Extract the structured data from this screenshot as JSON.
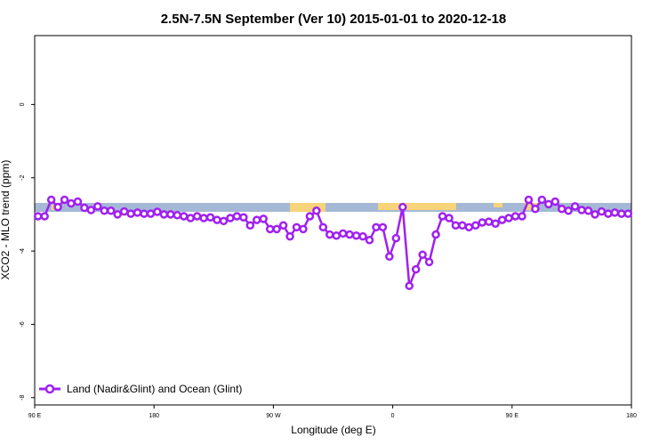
{
  "chart_data": {
    "type": "line",
    "title": "2.5N-7.5N September (Ver 10)   2015-01-01 to 2020-12-18",
    "x_label": "Longitude (deg E)",
    "y_label": "XCO2 - MLO trend (ppm)",
    "xlim": [
      90,
      540
    ],
    "ylim": [
      -8.2,
      1.88
    ],
    "xticks": [
      {
        "value": 90,
        "label": "90 E"
      },
      180,
      {
        "value": 270,
        "label": "90 W"
      },
      {
        "value": 360,
        "label": "0"
      },
      {
        "value": 450,
        "label": "90 E"
      },
      {
        "value": 540,
        "label": "180"
      }
    ],
    "yticks": [
      0,
      -2,
      -4,
      -6,
      -8
    ],
    "legend": "bottom-left",
    "x": [
      92.5,
      97.5,
      102.5,
      107.5,
      112.5,
      117.5,
      122.5,
      127.5,
      132.5,
      137.5,
      142.5,
      147.5,
      152.5,
      157.5,
      162.5,
      167.5,
      172.5,
      177.5,
      182.5,
      187.5,
      192.5,
      197.5,
      202.5,
      207.5,
      212.5,
      217.5,
      222.5,
      227.5,
      232.5,
      237.5,
      242.5,
      247.5,
      252.5,
      257.5,
      262.5,
      267.5,
      272.5,
      277.5,
      282.5,
      287.5,
      292.5,
      297.5,
      302.5,
      307.5,
      312.5,
      317.5,
      322.5,
      327.5,
      332.5,
      337.5,
      342.5,
      347.5,
      352.5,
      357.5,
      362.5,
      367.5,
      372.5,
      377.5,
      382.5,
      387.5,
      392.5,
      397.5,
      402.5,
      407.5,
      412.5,
      417.5,
      422.5,
      427.5,
      432.5,
      437.5,
      442.5,
      447.5,
      452.5,
      457.5,
      462.5,
      467.5,
      472.5,
      477.5,
      482.5,
      487.5,
      492.5,
      497.5,
      502.5,
      507.5,
      512.5,
      517.5,
      522.5,
      527.5,
      532.5,
      537.5
    ],
    "series": [
      {
        "name": "Land (Nadir&Glint) and Ocean (Glint)",
        "color": "#a020f0",
        "values": [
          -3.05,
          -3.05,
          -2.6,
          -2.8,
          -2.6,
          -2.7,
          -2.65,
          -2.82,
          -2.88,
          -2.78,
          -2.9,
          -2.9,
          -3.0,
          -2.92,
          -2.98,
          -2.95,
          -2.98,
          -2.98,
          -2.93,
          -3.0,
          -3.0,
          -3.02,
          -3.05,
          -3.1,
          -3.05,
          -3.1,
          -3.08,
          -3.15,
          -3.18,
          -3.1,
          -3.05,
          -3.08,
          -3.3,
          -3.15,
          -3.12,
          -3.4,
          -3.4,
          -3.3,
          -3.6,
          -3.35,
          -3.4,
          -3.05,
          -2.9,
          -3.35,
          -3.55,
          -3.58,
          -3.52,
          -3.55,
          -3.58,
          -3.6,
          -3.7,
          -3.35,
          -3.35,
          -4.15,
          -3.65,
          -2.8,
          -4.95,
          -4.5,
          -4.1,
          -4.3,
          -3.55,
          -3.05,
          -3.1,
          -3.3,
          -3.3,
          -3.35,
          -3.3,
          -3.22,
          -3.2,
          -3.25,
          -3.15,
          -3.1,
          -3.05,
          -3.05,
          -2.6,
          -2.85,
          -2.6,
          -2.72,
          -2.65,
          -2.85,
          -2.9,
          -2.78,
          -2.88,
          -2.9,
          -3.0,
          -2.92,
          -2.98,
          -2.95,
          -2.98,
          -2.98
        ]
      }
    ]
  }
}
